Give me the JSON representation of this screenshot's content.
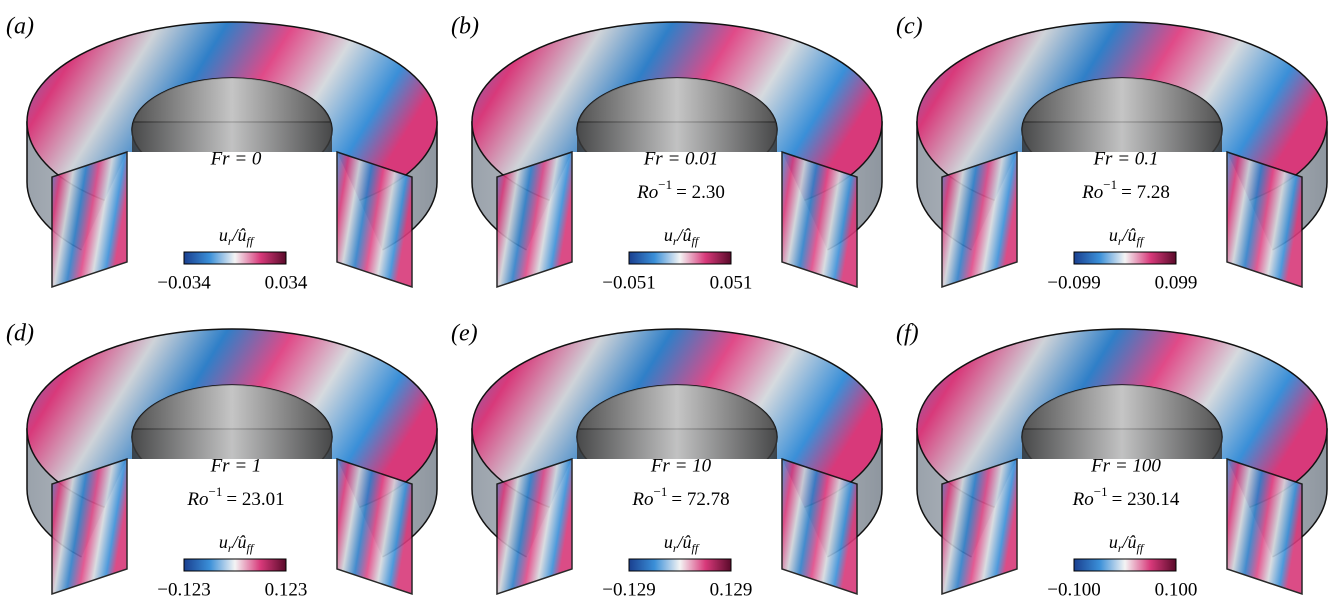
{
  "panels": [
    {
      "label": "(a)",
      "fr": "Fr = 0",
      "ro": null,
      "min": "−0.034",
      "max": "0.034"
    },
    {
      "label": "(b)",
      "fr": "Fr = 0.01",
      "ro": "= 2.30",
      "min": "−0.051",
      "max": "0.051"
    },
    {
      "label": "(c)",
      "fr": "Fr = 0.1",
      "ro": "= 7.28",
      "min": "−0.099",
      "max": "0.099"
    },
    {
      "label": "(d)",
      "fr": "Fr = 1",
      "ro": "= 23.01",
      "min": "−0.123",
      "max": "0.123"
    },
    {
      "label": "(e)",
      "fr": "Fr = 10",
      "ro": "= 72.78",
      "min": "−0.129",
      "max": "0.129"
    },
    {
      "label": "(f)",
      "fr": "Fr = 100",
      "ro": "= 230.14",
      "min": "−0.100",
      "max": "0.100"
    }
  ],
  "ro_symbol": {
    "base": "Ro",
    "sup": "−1"
  },
  "colorbar_label": {
    "u": "u",
    "sub": "r",
    "sep": "/",
    "hat": "û",
    "sub2": "ff"
  }
}
